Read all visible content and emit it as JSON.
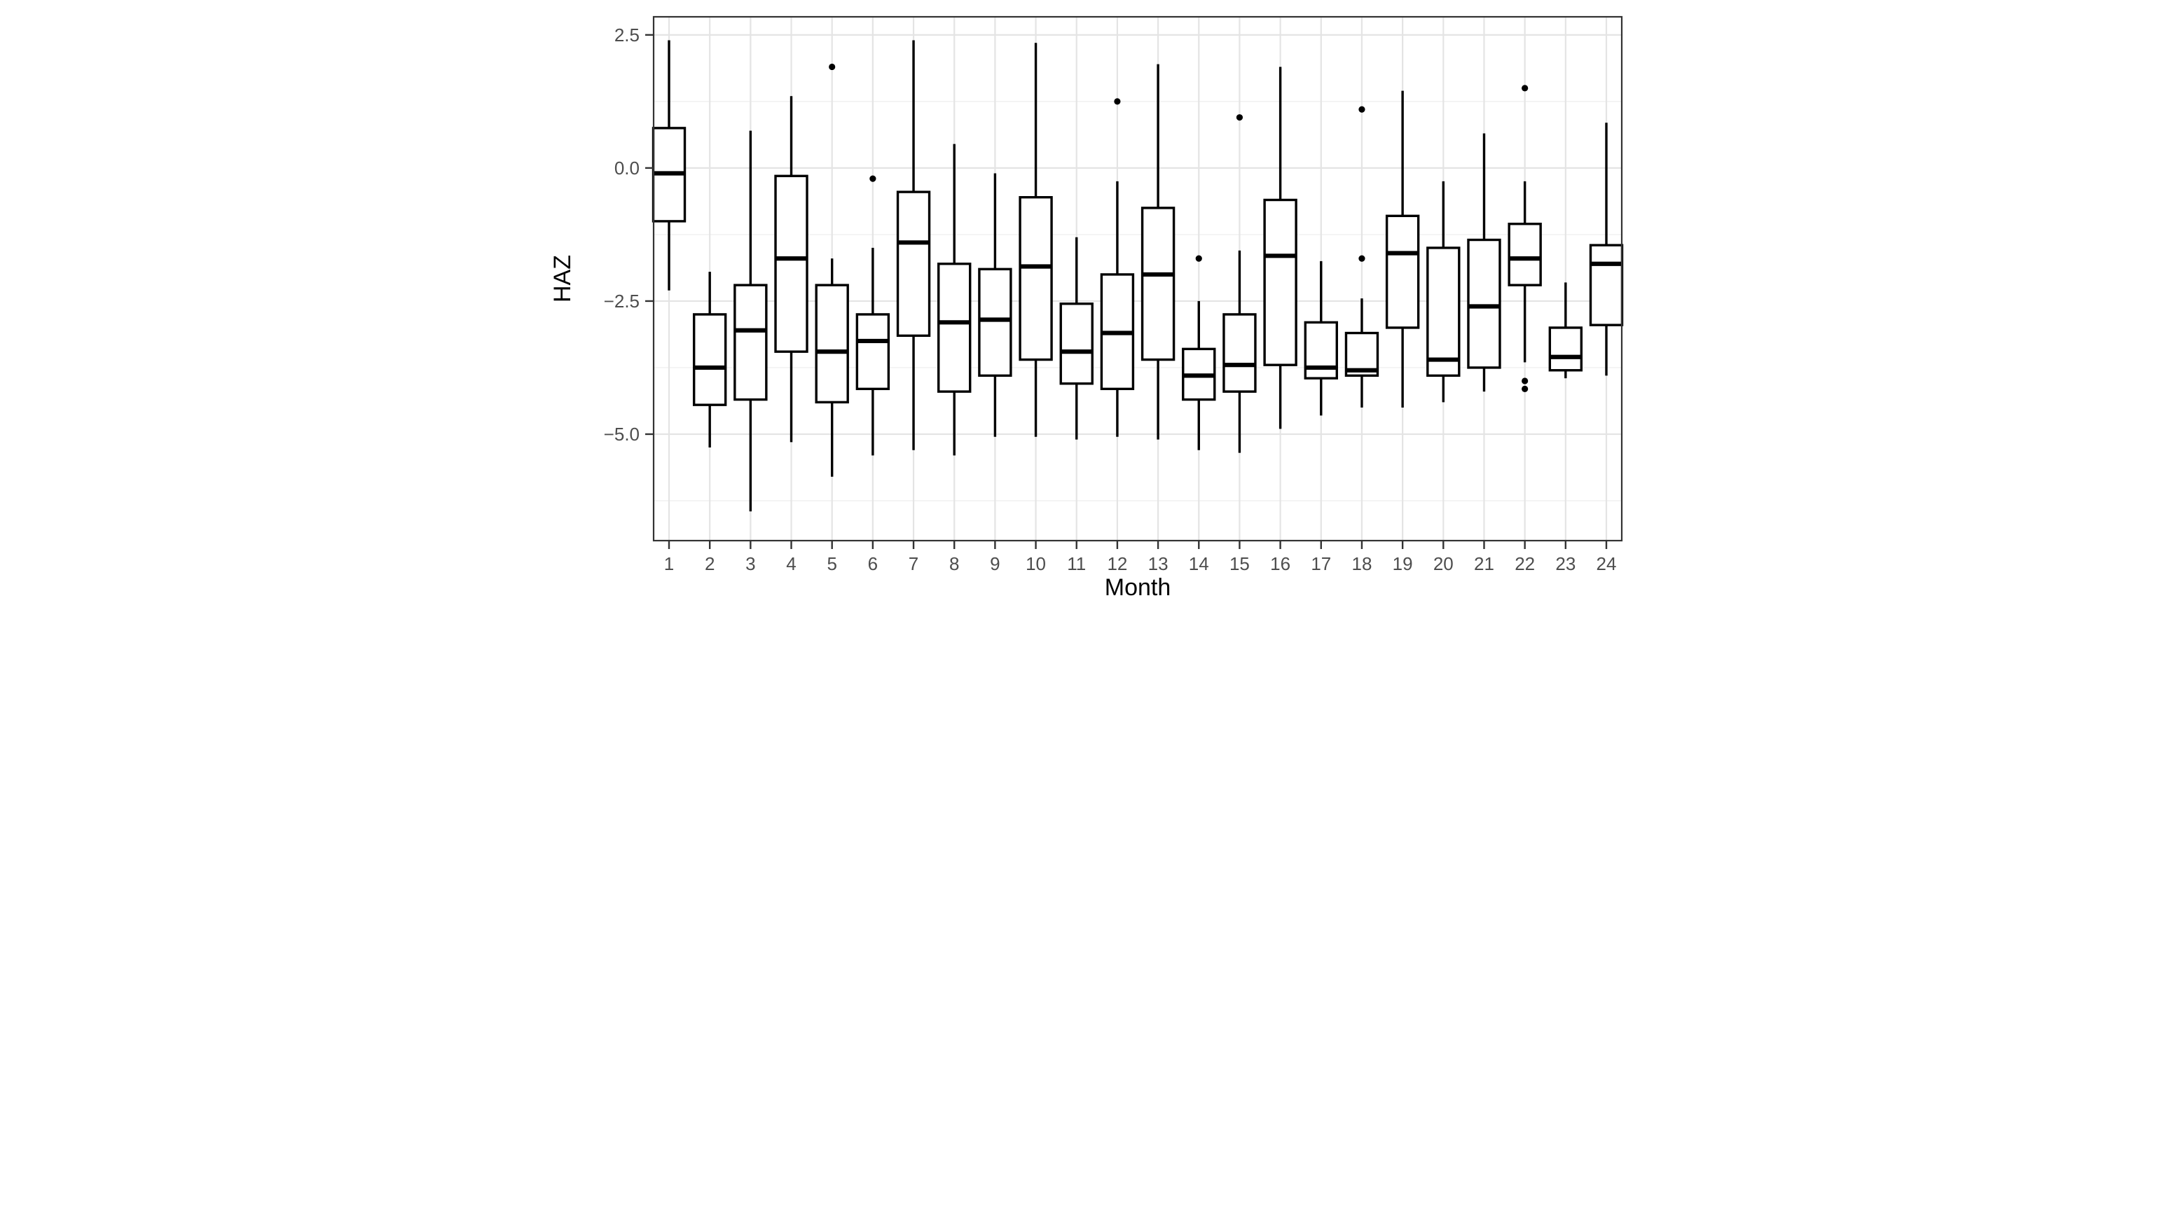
{
  "chart_data": {
    "type": "boxplot",
    "title": "",
    "xlabel": "Month",
    "ylabel": "HAZ",
    "x_categories": [
      "1",
      "2",
      "3",
      "4",
      "5",
      "6",
      "7",
      "8",
      "9",
      "10",
      "11",
      "12",
      "13",
      "14",
      "15",
      "16",
      "17",
      "18",
      "19",
      "20",
      "21",
      "22",
      "23",
      "24"
    ],
    "y_axis": {
      "ticks": [
        2.5,
        0.0,
        -2.5,
        -5.0
      ],
      "tick_labels": [
        "2.5",
        "0.0",
        "−2.5",
        "−5.0"
      ],
      "minor_gridlines": [
        1.25,
        -1.25,
        -3.75,
        -6.25
      ],
      "limits": [
        -7.0,
        2.84
      ]
    },
    "grid": "major-and-minor-horizontal, major-vertical-per-month",
    "legend": "none",
    "boxes": [
      {
        "month": "1",
        "whisker_low": -2.3,
        "q1": -1.0,
        "median": -0.1,
        "q3": 0.75,
        "whisker_high": 2.4,
        "outliers": []
      },
      {
        "month": "2",
        "whisker_low": -5.25,
        "q1": -4.45,
        "median": -3.75,
        "q3": -2.75,
        "whisker_high": -1.95,
        "outliers": []
      },
      {
        "month": "3",
        "whisker_low": -6.45,
        "q1": -4.35,
        "median": -3.05,
        "q3": -2.2,
        "whisker_high": 0.7,
        "outliers": []
      },
      {
        "month": "4",
        "whisker_low": -5.15,
        "q1": -3.45,
        "median": -1.7,
        "q3": -0.15,
        "whisker_high": 1.35,
        "outliers": []
      },
      {
        "month": "5",
        "whisker_low": -5.8,
        "q1": -4.4,
        "median": -3.45,
        "q3": -2.2,
        "whisker_high": -1.7,
        "outliers": [
          1.9
        ]
      },
      {
        "month": "6",
        "whisker_low": -5.4,
        "q1": -4.15,
        "median": -3.25,
        "q3": -2.75,
        "whisker_high": -1.5,
        "outliers": [
          -0.2
        ]
      },
      {
        "month": "7",
        "whisker_low": -5.3,
        "q1": -3.15,
        "median": -1.4,
        "q3": -0.45,
        "whisker_high": 2.4,
        "outliers": []
      },
      {
        "month": "8",
        "whisker_low": -5.4,
        "q1": -4.2,
        "median": -2.9,
        "q3": -1.8,
        "whisker_high": 0.45,
        "outliers": []
      },
      {
        "month": "9",
        "whisker_low": -5.05,
        "q1": -3.9,
        "median": -2.85,
        "q3": -1.9,
        "whisker_high": -0.1,
        "outliers": []
      },
      {
        "month": "10",
        "whisker_low": -5.05,
        "q1": -3.6,
        "median": -1.85,
        "q3": -0.55,
        "whisker_high": 2.35,
        "outliers": []
      },
      {
        "month": "11",
        "whisker_low": -5.1,
        "q1": -4.05,
        "median": -3.45,
        "q3": -2.55,
        "whisker_high": -1.3,
        "outliers": []
      },
      {
        "month": "12",
        "whisker_low": -5.05,
        "q1": -4.15,
        "median": -3.1,
        "q3": -2.0,
        "whisker_high": -0.25,
        "outliers": [
          1.25
        ]
      },
      {
        "month": "13",
        "whisker_low": -5.1,
        "q1": -3.6,
        "median": -2.0,
        "q3": -0.75,
        "whisker_high": 1.95,
        "outliers": []
      },
      {
        "month": "14",
        "whisker_low": -5.3,
        "q1": -4.35,
        "median": -3.9,
        "q3": -3.4,
        "whisker_high": -2.5,
        "outliers": [
          -1.7
        ]
      },
      {
        "month": "15",
        "whisker_low": -5.35,
        "q1": -4.2,
        "median": -3.7,
        "q3": -2.75,
        "whisker_high": -1.55,
        "outliers": [
          0.95
        ]
      },
      {
        "month": "16",
        "whisker_low": -4.9,
        "q1": -3.7,
        "median": -1.65,
        "q3": -0.6,
        "whisker_high": 1.9,
        "outliers": []
      },
      {
        "month": "17",
        "whisker_low": -4.65,
        "q1": -3.95,
        "median": -3.75,
        "q3": -2.9,
        "whisker_high": -1.75,
        "outliers": []
      },
      {
        "month": "18",
        "whisker_low": -4.5,
        "q1": -3.9,
        "median": -3.8,
        "q3": -3.1,
        "whisker_high": -2.45,
        "outliers": [
          1.1,
          -1.7
        ]
      },
      {
        "month": "19",
        "whisker_low": -4.5,
        "q1": -3.0,
        "median": -1.6,
        "q3": -0.9,
        "whisker_high": 1.45,
        "outliers": []
      },
      {
        "month": "20",
        "whisker_low": -4.4,
        "q1": -3.9,
        "median": -3.6,
        "q3": -1.5,
        "whisker_high": -0.25,
        "outliers": []
      },
      {
        "month": "21",
        "whisker_low": -4.2,
        "q1": -3.75,
        "median": -2.6,
        "q3": -1.35,
        "whisker_high": 0.65,
        "outliers": []
      },
      {
        "month": "22",
        "whisker_low": -3.65,
        "q1": -2.2,
        "median": -1.7,
        "q3": -1.05,
        "whisker_high": -0.25,
        "outliers": [
          1.5,
          -4.0,
          -4.15
        ]
      },
      {
        "month": "23",
        "whisker_low": -3.95,
        "q1": -3.8,
        "median": -3.55,
        "q3": -3.0,
        "whisker_high": -2.15,
        "outliers": []
      },
      {
        "month": "24",
        "whisker_low": -3.9,
        "q1": -2.95,
        "median": -1.8,
        "q3": -1.45,
        "whisker_high": 0.85,
        "outliers": []
      }
    ],
    "colors": {
      "box_stroke": "#000000",
      "box_fill": "#ffffff",
      "grid_major": "#e4e4e4",
      "grid_minor": "#f0f0f0",
      "panel_border": "#333333",
      "tick_color": "#333333",
      "tick_label_color": "#4d4d4d",
      "axis_title_color": "#000000",
      "background": "#ffffff"
    }
  }
}
